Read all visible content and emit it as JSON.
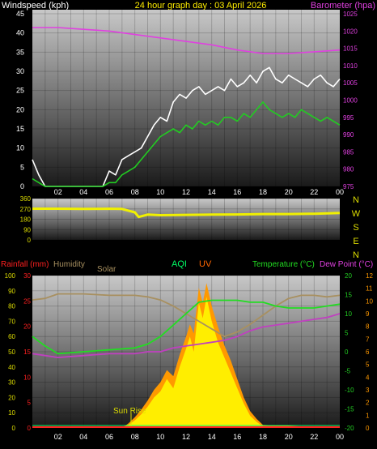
{
  "header": {
    "left_label": "Windspeed (kph)",
    "title": "24 hour graph day : 03 April 2026",
    "right_label": "Barometer (hpa)"
  },
  "panel_labels": {
    "rainfall": "Rainfall (mm)",
    "humidity": "Humidity",
    "solar": "Solar",
    "aqi": "AQI",
    "uv": "UV",
    "temperature": "Temperature (°C)",
    "dew_point": "Dew Point (°C)",
    "sun_rise": "Sun Rise"
  },
  "colors": {
    "background": "#000000",
    "wind_gust": "#ffffff",
    "wind_avg": "#22cc22",
    "barometer": "#e040e0",
    "direction": "#f0f000",
    "rain": "#ff2020",
    "humidity": "#a89060",
    "temperature": "#22dd22",
    "dew_point": "#c040c0",
    "solar": "#ffee00",
    "solar_max": "#ff9900",
    "aqi": "#00ff66",
    "uv": "#ff6600",
    "tick_yellow": "#dddd00",
    "tick_green": "#22cc22",
    "tick_orange": "#ff9900"
  },
  "chart_data": [
    {
      "id": "wind_pressure",
      "type": "line",
      "x_ticks": [
        "02",
        "04",
        "06",
        "08",
        "10",
        "12",
        "14",
        "16",
        "18",
        "20",
        "22",
        "00"
      ],
      "y_left": {
        "label": "Windspeed (kph)",
        "range": [
          0,
          45
        ],
        "ticks": [
          "0",
          "5",
          "10",
          "15",
          "20",
          "25",
          "30",
          "35",
          "40",
          "45"
        ]
      },
      "y_right": {
        "label": "Barometer (hpa)",
        "range": [
          975,
          1025
        ],
        "ticks": [
          "975",
          "980",
          "985",
          "990",
          "995",
          "1000",
          "1005",
          "1010",
          "1015",
          "1020",
          "1025"
        ]
      },
      "series": [
        {
          "axis": "left",
          "hours": [
            0,
            0.5,
            1,
            1.5,
            2,
            3,
            4,
            5,
            5.5,
            6,
            6.5,
            7,
            7.5,
            8,
            8.5,
            9,
            9.5,
            10,
            10.5,
            11,
            11.5,
            12,
            12.5,
            13,
            13.5,
            14,
            14.5,
            15,
            15.5,
            16,
            16.5,
            17,
            17.5,
            18,
            18.5,
            19,
            19.5,
            20,
            20.5,
            21,
            21.5,
            22,
            22.5,
            23,
            23.5,
            24
          ],
          "values": [
            7,
            3,
            0,
            0,
            0,
            0,
            0,
            0,
            0,
            4,
            3,
            7,
            8,
            9,
            10,
            13,
            16,
            18,
            17,
            22,
            24,
            23,
            25,
            26,
            24,
            25,
            26,
            25,
            28,
            26,
            27,
            29,
            27,
            30,
            31,
            28,
            27,
            29,
            28,
            27,
            26,
            28,
            29,
            27,
            26,
            28
          ]
        },
        {
          "axis": "left",
          "hours": [
            0,
            0.5,
            1,
            1.5,
            2,
            3,
            4,
            5,
            5.5,
            6,
            6.5,
            7,
            7.5,
            8,
            8.5,
            9,
            9.5,
            10,
            10.5,
            11,
            11.5,
            12,
            12.5,
            13,
            13.5,
            14,
            14.5,
            15,
            15.5,
            16,
            16.5,
            17,
            17.5,
            18,
            18.5,
            19,
            19.5,
            20,
            20.5,
            21,
            21.5,
            22,
            22.5,
            23,
            23.5,
            24
          ],
          "values": [
            2,
            1,
            0,
            0,
            0,
            0,
            0,
            0,
            0,
            1,
            1,
            3,
            4,
            5,
            7,
            9,
            11,
            13,
            14,
            15,
            14,
            16,
            15,
            17,
            16,
            17,
            16,
            18,
            18,
            17,
            19,
            18,
            20,
            22,
            20,
            19,
            18,
            19,
            18,
            20,
            19,
            18,
            17,
            18,
            17,
            16
          ]
        },
        {
          "axis": "right",
          "hours": [
            0,
            2,
            4,
            6,
            7,
            8,
            10,
            12,
            14,
            16,
            18,
            20,
            22,
            24
          ],
          "values": [
            1021,
            1021,
            1020.5,
            1020,
            1019.5,
            1019,
            1018,
            1017,
            1016,
            1014.5,
            1013.5,
            1013.5,
            1014,
            1014.5
          ]
        }
      ]
    },
    {
      "id": "wind_direction",
      "type": "line",
      "x_ticks": [
        "02",
        "04",
        "06",
        "08",
        "10",
        "12",
        "14",
        "16",
        "18",
        "20",
        "22",
        "00"
      ],
      "y_left": {
        "range": [
          0,
          360
        ],
        "ticks": [
          "0",
          "90",
          "180",
          "270",
          "360"
        ]
      },
      "y_right_labels": [
        "N",
        "W",
        "S",
        "E",
        "N"
      ],
      "series": [
        {
          "hours": [
            0,
            2,
            4,
            6,
            7,
            7.5,
            8,
            8.3,
            9,
            10,
            12,
            14,
            16,
            18,
            20,
            22,
            24
          ],
          "values": [
            272,
            272,
            270,
            272,
            270,
            255,
            240,
            200,
            220,
            215,
            218,
            220,
            222,
            225,
            225,
            228,
            235
          ]
        }
      ]
    },
    {
      "id": "rain_temp_solar",
      "type": "line",
      "x_ticks": [
        "02",
        "04",
        "06",
        "08",
        "10",
        "12",
        "14",
        "16",
        "18",
        "20",
        "22",
        "00"
      ],
      "y_humidity": {
        "range": [
          0,
          100
        ],
        "ticks": [
          "0",
          "10",
          "20",
          "30",
          "40",
          "50",
          "60",
          "70",
          "80",
          "90",
          "100"
        ]
      },
      "y_rain": {
        "range": [
          0,
          30
        ],
        "ticks": [
          "0",
          "5",
          "10",
          "15",
          "20",
          "25",
          "30"
        ]
      },
      "y_temperature": {
        "range": [
          -20,
          20
        ],
        "ticks": [
          "-20",
          "-15",
          "-10",
          "-5",
          "0",
          "5",
          "10",
          "15",
          "20"
        ]
      },
      "y_uv": {
        "range": [
          0,
          12
        ],
        "ticks": [
          "0",
          "1",
          "2",
          "3",
          "4",
          "5",
          "6",
          "7",
          "8",
          "9",
          "10",
          "11",
          "12"
        ]
      },
      "series": [
        {
          "hours": [
            0,
            1,
            2,
            4,
            6,
            8,
            9,
            10,
            11,
            12,
            13,
            14,
            15,
            16,
            17,
            18,
            19,
            20,
            21,
            22,
            23,
            24
          ],
          "values": [
            84,
            85,
            88,
            88,
            87,
            87,
            86,
            84,
            80,
            75,
            70,
            65,
            60,
            63,
            68,
            74,
            80,
            85,
            87,
            87,
            86,
            87
          ]
        },
        {
          "hours": [
            0,
            1,
            2,
            4,
            6,
            8,
            9,
            10,
            11,
            12,
            13,
            14,
            15,
            16,
            17,
            18,
            19,
            20,
            21,
            22,
            23,
            24
          ],
          "values": [
            4,
            1.5,
            -0.5,
            0,
            0.5,
            1,
            2,
            4,
            7,
            10,
            13,
            13.5,
            13.5,
            13.5,
            13,
            13,
            12,
            11.5,
            11.5,
            11.5,
            12,
            12.5
          ]
        },
        {
          "hours": [
            0,
            1,
            2,
            4,
            6,
            8,
            9,
            10,
            11,
            12,
            13,
            14,
            15,
            16,
            17,
            18,
            19,
            20,
            21,
            22,
            23,
            24
          ],
          "values": [
            -0.5,
            -1,
            -1.5,
            -1,
            -0.5,
            -0.5,
            0,
            0,
            1,
            1.5,
            2,
            2.5,
            3,
            4,
            5.5,
            6.5,
            7,
            7.5,
            8,
            8.5,
            9,
            10
          ]
        },
        {
          "hours": [
            0,
            7,
            7.5,
            8,
            8.5,
            9,
            9.5,
            10,
            10.5,
            11,
            11.5,
            12,
            12.3,
            12.6,
            13,
            13.3,
            13.6,
            14,
            14.5,
            15,
            15.5,
            16,
            16.5,
            17,
            17.5,
            18,
            24
          ],
          "values": [
            0,
            0,
            2,
            5,
            9,
            14,
            20,
            24,
            32,
            26,
            40,
            52,
            60,
            50,
            82,
            72,
            86,
            70,
            56,
            46,
            36,
            26,
            16,
            8,
            4,
            1,
            0
          ]
        },
        {
          "hours": [
            0,
            7,
            7.5,
            8,
            8.5,
            9,
            9.5,
            10,
            10.5,
            11,
            11.5,
            12,
            12.3,
            12.6,
            13,
            13.3,
            13.6,
            14,
            14.5,
            15,
            15.5,
            16,
            16.5,
            17,
            17.5,
            18,
            24
          ],
          "values": [
            0,
            0,
            3,
            7,
            12,
            18,
            25,
            30,
            38,
            34,
            48,
            60,
            68,
            62,
            92,
            82,
            95,
            80,
            66,
            54,
            44,
            32,
            20,
            11,
            6,
            2,
            0
          ]
        }
      ]
    }
  ]
}
